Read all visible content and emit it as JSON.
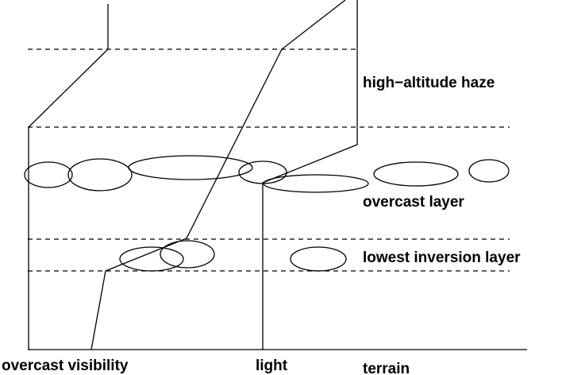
{
  "labels": {
    "haze": "high−altitude haze",
    "overcast_layer": "overcast layer",
    "inversion": "lowest inversion layer",
    "visibility": "overcast visibility",
    "light": "light",
    "terrain": "terrain"
  }
}
